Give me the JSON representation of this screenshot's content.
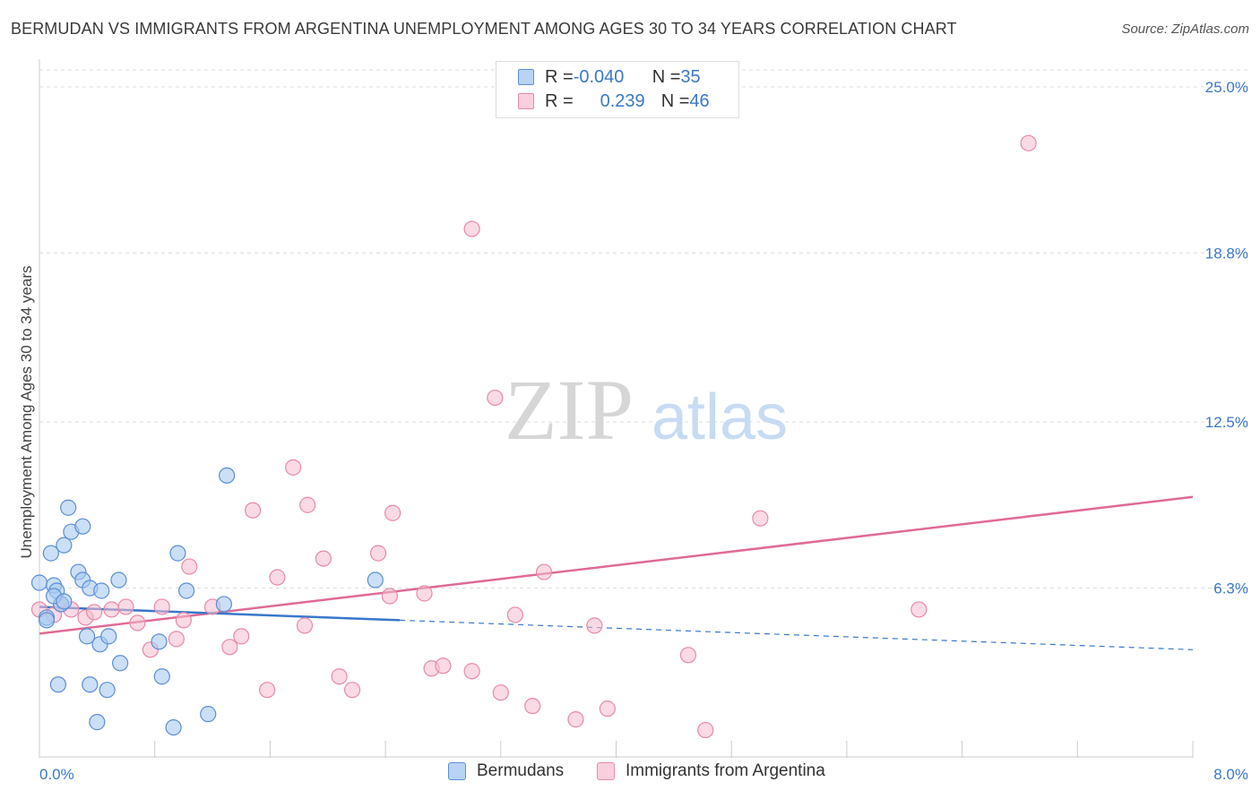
{
  "title": "BERMUDAN VS IMMIGRANTS FROM ARGENTINA UNEMPLOYMENT AMONG AGES 30 TO 34 YEARS CORRELATION CHART",
  "source": "Source: ZipAtlas.com",
  "watermark": {
    "zip": "ZIP",
    "atlas": "atlas"
  },
  "legend": {
    "rows": [
      {
        "r_label": "R = ",
        "r_value": "-0.040",
        "n_label": "N = ",
        "n_value": "35"
      },
      {
        "r_label": "R = ",
        "r_value": "0.239",
        "n_label": "N = ",
        "n_value": "46"
      }
    ]
  },
  "bottom_legend": {
    "series1": "Bermudans",
    "series2": "Immigrants from Argentina"
  },
  "colors": {
    "blue_fill": "#a9c9f0",
    "blue_stroke": "#5b8fd6",
    "blue_line": "#3a78c9",
    "pink_fill": "#f6bcd0",
    "pink_stroke": "#e889aa",
    "pink_line": "#e06a96",
    "tick_label": "#3a78c9",
    "grid": "#dddddd"
  },
  "chart_data": {
    "type": "scatter",
    "title": "BERMUDAN VS IMMIGRANTS FROM ARGENTINA UNEMPLOYMENT AMONG AGES 30 TO 34 YEARS CORRELATION CHART",
    "xlabel": "",
    "ylabel": "Unemployment Among Ages 30 to 34 years",
    "xlim": [
      0.0,
      8.0
    ],
    "ylim": [
      0.0,
      25.0
    ],
    "x_tick_labels": [
      "0.0%",
      "8.0%"
    ],
    "y_ticks": [
      6.3,
      12.5,
      18.8,
      25.0
    ],
    "y_tick_labels": [
      "6.3%",
      "12.5%",
      "18.8%",
      "25.0%"
    ],
    "series": [
      {
        "name": "Bermudans",
        "r": -0.04,
        "n": 35,
        "points": [
          [
            0.0,
            6.5
          ],
          [
            0.05,
            5.2
          ],
          [
            0.08,
            7.6
          ],
          [
            0.1,
            6.4
          ],
          [
            0.12,
            6.2
          ],
          [
            0.15,
            5.7
          ],
          [
            0.17,
            7.9
          ],
          [
            0.2,
            9.3
          ],
          [
            0.22,
            8.4
          ],
          [
            0.27,
            6.9
          ],
          [
            0.3,
            8.6
          ],
          [
            0.3,
            6.6
          ],
          [
            0.33,
            4.5
          ],
          [
            0.35,
            6.3
          ],
          [
            0.42,
            4.2
          ],
          [
            0.43,
            6.2
          ],
          [
            0.48,
            4.5
          ],
          [
            0.55,
            6.6
          ],
          [
            0.56,
            3.5
          ],
          [
            0.13,
            2.7
          ],
          [
            0.35,
            2.7
          ],
          [
            0.47,
            2.5
          ],
          [
            0.4,
            1.3
          ],
          [
            0.83,
            4.3
          ],
          [
            0.85,
            3.0
          ],
          [
            0.93,
            1.1
          ],
          [
            0.96,
            7.6
          ],
          [
            1.02,
            6.2
          ],
          [
            1.17,
            1.6
          ],
          [
            1.28,
            5.7
          ],
          [
            1.3,
            10.5
          ],
          [
            2.33,
            6.6
          ],
          [
            0.05,
            5.1
          ],
          [
            0.1,
            6.0
          ],
          [
            0.17,
            5.8
          ]
        ],
        "trend": {
          "x": [
            0.0,
            2.5
          ],
          "y": [
            5.6,
            5.1
          ],
          "dashed_extension": {
            "x": [
              2.5,
              8.0
            ],
            "y": [
              5.1,
              4.0
            ]
          }
        }
      },
      {
        "name": "Immigrants from Argentina",
        "r": 0.239,
        "n": 46,
        "points": [
          [
            0.0,
            5.5
          ],
          [
            0.1,
            5.3
          ],
          [
            0.15,
            5.7
          ],
          [
            0.22,
            5.5
          ],
          [
            0.32,
            5.2
          ],
          [
            0.38,
            5.4
          ],
          [
            0.5,
            5.5
          ],
          [
            0.6,
            5.6
          ],
          [
            0.68,
            5.0
          ],
          [
            0.77,
            4.0
          ],
          [
            0.85,
            5.6
          ],
          [
            0.95,
            4.4
          ],
          [
            1.0,
            5.1
          ],
          [
            1.04,
            7.1
          ],
          [
            1.2,
            5.6
          ],
          [
            1.32,
            4.1
          ],
          [
            1.4,
            4.5
          ],
          [
            1.48,
            9.2
          ],
          [
            1.58,
            2.5
          ],
          [
            1.65,
            6.7
          ],
          [
            1.76,
            10.8
          ],
          [
            1.84,
            4.9
          ],
          [
            1.86,
            9.4
          ],
          [
            1.97,
            7.4
          ],
          [
            2.08,
            3.0
          ],
          [
            2.17,
            2.5
          ],
          [
            2.35,
            7.6
          ],
          [
            2.43,
            6.0
          ],
          [
            2.45,
            9.1
          ],
          [
            2.67,
            6.1
          ],
          [
            2.72,
            3.3
          ],
          [
            2.8,
            3.4
          ],
          [
            3.0,
            3.2
          ],
          [
            3.0,
            19.7
          ],
          [
            3.16,
            13.4
          ],
          [
            3.2,
            2.4
          ],
          [
            3.3,
            5.3
          ],
          [
            3.42,
            1.9
          ],
          [
            3.5,
            6.9
          ],
          [
            3.72,
            1.4
          ],
          [
            3.85,
            4.9
          ],
          [
            3.94,
            1.8
          ],
          [
            4.5,
            3.8
          ],
          [
            4.62,
            1.0
          ],
          [
            5.0,
            8.9
          ],
          [
            6.1,
            5.5
          ],
          [
            6.86,
            22.9
          ]
        ],
        "trend": {
          "x": [
            0.0,
            8.0
          ],
          "y": [
            4.6,
            9.7
          ]
        }
      }
    ]
  }
}
